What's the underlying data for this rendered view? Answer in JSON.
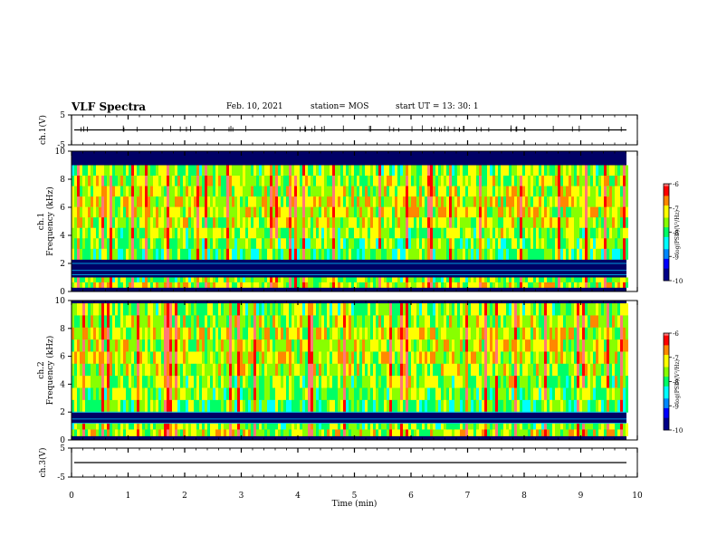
{
  "header": {
    "title": "VLF Spectra",
    "date": "Feb. 10, 2021",
    "station": "station= MOS",
    "start": "start  UT =   13: 30: 1"
  },
  "chart_data": [
    {
      "type": "line",
      "panel": "ch.1 waveform",
      "ylabel": "ch.1(V)",
      "yticks": [
        "5",
        "-5"
      ],
      "ylim": [
        -5,
        5
      ],
      "series": [
        {
          "values_y": 0
        }
      ]
    },
    {
      "type": "heatmap",
      "panel": "ch.1 spectrogram",
      "ylabel": "ch.1\nFrequency (kHz)",
      "ylim": [
        0,
        10
      ],
      "yticks": [
        "0",
        "2",
        "4",
        "6",
        "8",
        "10"
      ],
      "colorbar": {
        "label": "log(PSD)(V²/Hz)",
        "range": [
          -10,
          -6
        ],
        "ticks": [
          "-6",
          "-7",
          "-8",
          "-9",
          "-10"
        ]
      },
      "bands_khz": [
        [
          0.3,
          1.0
        ],
        [
          2.3,
          9.0
        ]
      ]
    },
    {
      "type": "heatmap",
      "panel": "ch.2 spectrogram",
      "ylabel": "ch.2\nFrequency (kHz)",
      "ylim": [
        0,
        10
      ],
      "yticks": [
        "0",
        "2",
        "4",
        "6",
        "8",
        "10"
      ],
      "colorbar": {
        "label": "log(PSD)(V²/Hz)",
        "range": [
          -10,
          -6
        ],
        "ticks": [
          "-6",
          "-7",
          "-8",
          "-9",
          "-10"
        ]
      },
      "bands_khz": [
        [
          0.3,
          1.2
        ],
        [
          2.0,
          9.8
        ]
      ]
    },
    {
      "type": "line",
      "panel": "ch.3 waveform",
      "ylabel": "ch.3(V)",
      "yticks": [
        "5",
        "-5"
      ],
      "ylim": [
        -5,
        5
      ],
      "series": [
        {
          "values_y": 0
        }
      ]
    }
  ],
  "xaxis": {
    "label": "Time  (min)",
    "xlim": [
      0,
      10
    ],
    "ticks": [
      "0",
      "1",
      "2",
      "3",
      "4",
      "5",
      "6",
      "7",
      "8",
      "9",
      "10"
    ]
  },
  "colors": {
    "colormap": [
      "#000088",
      "#0000ff",
      "#0088ff",
      "#00ffff",
      "#00ff66",
      "#88ff00",
      "#ffff00",
      "#ff8800",
      "#ff0000",
      "#ff7777",
      "#ffffff"
    ]
  }
}
